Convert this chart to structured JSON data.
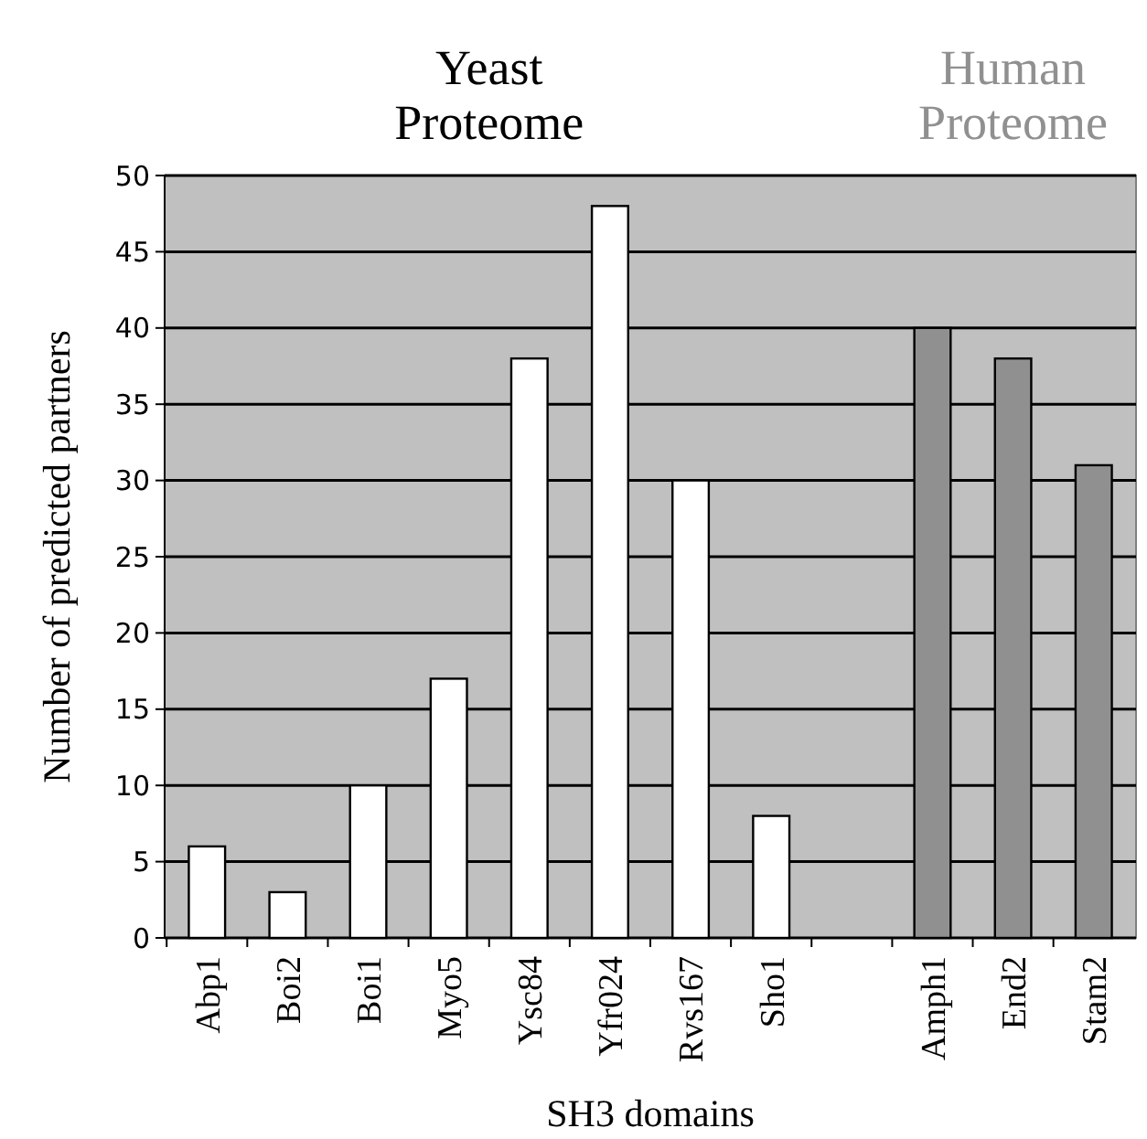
{
  "chart_data": {
    "type": "bar",
    "xlabel": "SH3 domains",
    "ylabel": "Number of predicted partners",
    "categories": [
      "Abp1",
      "Boi2",
      "Boi1",
      "Myo5",
      "Ysc84",
      "Yfr024",
      "Rvs167",
      "Sho1",
      null,
      "Amph1",
      "End2",
      "Stam2"
    ],
    "series": [
      {
        "name": "Yeast Proteome",
        "color": "#ffffff",
        "values": [
          6,
          3,
          10,
          17,
          38,
          48,
          30,
          8,
          null,
          null,
          null,
          null
        ]
      },
      {
        "name": "Human Proteome",
        "color": "#909090",
        "values": [
          null,
          null,
          null,
          null,
          null,
          null,
          null,
          null,
          null,
          40,
          38,
          31
        ]
      }
    ],
    "ylim": [
      0,
      50
    ],
    "yticks": [
      0,
      5,
      10,
      15,
      20,
      25,
      30,
      35,
      40,
      45,
      50
    ],
    "grid": "y",
    "legend": false
  }
}
